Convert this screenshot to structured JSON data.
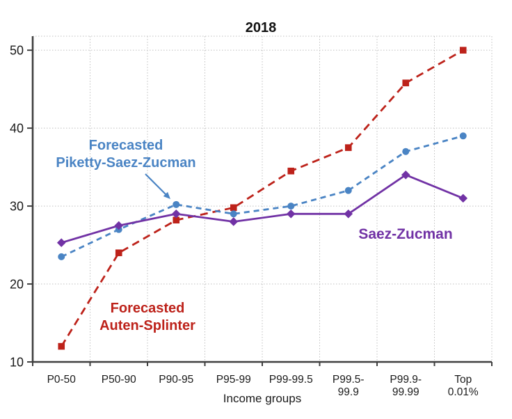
{
  "chart_data": {
    "type": "line",
    "title": "2018",
    "xlabel": "Income groups",
    "ylabel": "",
    "categories": [
      "P0-50",
      "P50-90",
      "P90-95",
      "P95-99",
      "P99-99.5",
      "P99.5-99.9",
      "P99.9-99.99",
      "Top 0.01%"
    ],
    "tick_display": [
      [
        "P0-50"
      ],
      [
        "P50-90"
      ],
      [
        "P90-95"
      ],
      [
        "P95-99"
      ],
      [
        "P99-99.5"
      ],
      [
        "P99.5-",
        "99.9"
      ],
      [
        "P99.9-",
        "99.99"
      ],
      [
        "Top",
        "0.01%"
      ]
    ],
    "ylim": [
      10,
      51.8
    ],
    "yticks": [
      10,
      20,
      30,
      40,
      50
    ],
    "grid": true,
    "grid_color": "#bfbfbf",
    "axis_color": "#3f3f3f",
    "text_color": "#1a1a1a",
    "legend_position": "annotations-inline",
    "series": [
      {
        "name": "Forecasted Auten-Splinter",
        "color": "#bd221a",
        "line_style": "dashed",
        "marker": "square",
        "values": [
          12,
          24,
          28.2,
          29.8,
          34.5,
          37.5,
          45.8,
          50
        ]
      },
      {
        "name": "Forecasted Piketty-Saez-Zucman",
        "color": "#4a84c4",
        "line_style": "dashed",
        "marker": "circle",
        "values": [
          23.5,
          27,
          30.2,
          29,
          30,
          32,
          37,
          39
        ]
      },
      {
        "name": "Saez-Zucman",
        "color": "#7132a5",
        "line_style": "solid",
        "marker": "diamond",
        "values": [
          25.3,
          27.5,
          29,
          28,
          29,
          29,
          34,
          31
        ]
      }
    ],
    "annotations": [
      {
        "id": "forecasted-piketty-saez-zucman-label",
        "lines": [
          "Forecasted",
          "Piketty-Saez-Zucman"
        ],
        "color": "#4a84c4",
        "cx": 181,
        "baseline_y": 215,
        "line_height": 25,
        "font_size": 20,
        "arrow": {
          "x1": 209,
          "y1": 250,
          "x2": 240,
          "y2": 281
        }
      },
      {
        "id": "forecasted-auten-splinter-label",
        "lines": [
          "Forecasted",
          "Auten-Splinter"
        ],
        "color": "#bd221a",
        "cx": 212,
        "baseline_y": 449,
        "line_height": 25,
        "font_size": 20
      },
      {
        "id": "saez-zucman-label",
        "lines": [
          "Saez-Zucman"
        ],
        "color": "#7132a5",
        "cx": 583,
        "baseline_y": 343,
        "line_height": 25,
        "font_size": 21
      }
    ]
  }
}
